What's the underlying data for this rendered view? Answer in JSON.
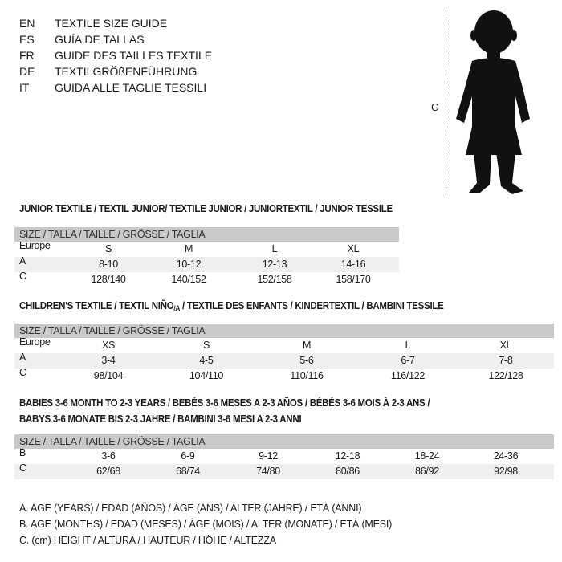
{
  "languages": [
    {
      "code": "EN",
      "text": "TEXTILE SIZE GUIDE"
    },
    {
      "code": "ES",
      "text": "GUÍA DE TALLAS"
    },
    {
      "code": "FR",
      "text": "GUIDE DES TAILLES TEXTILE"
    },
    {
      "code": "DE",
      "text": "TEXTILGRÖßENFÜHRUNG"
    },
    {
      "code": "IT",
      "text": "GUIDA ALLE TAGLIE TESSILI"
    }
  ],
  "figure": {
    "height_label": "C",
    "icon": "child-silhouette"
  },
  "junior": {
    "title": "JUNIOR TEXTILE / TEXTIL JUNIOR/ TEXTILE JUNIOR / JUNIORTEXTIL / JUNIOR TESSILE",
    "header": "SIZE / TALLA / TAILLE / GRÖSSE / TAGLIA",
    "rows": [
      {
        "label": "Europe",
        "cells": [
          "S",
          "M",
          "L",
          "XL"
        ]
      },
      {
        "label": "A",
        "cells": [
          "8-10",
          "10-12",
          "12-13",
          "14-16"
        ]
      },
      {
        "label": "C",
        "cells": [
          "128/140",
          "140/152",
          "152/158",
          "158/170"
        ]
      }
    ]
  },
  "children": {
    "title_a": "CHILDREN'S TEXTILE / TEXTIL NIÑO",
    "title_sub": "/A",
    "title_b": " / TEXTILE DES ENFANTS / KINDERTEXTIL / BAMBINI TESSILE",
    "header": "SIZE / TALLA / TAILLE / GRÖSSE / TAGLIA",
    "rows": [
      {
        "label": "Europe",
        "cells": [
          "XS",
          "S",
          "M",
          "L",
          "XL"
        ]
      },
      {
        "label": "A",
        "cells": [
          "3-4",
          "4-5",
          "5-6",
          "6-7",
          "7-8"
        ]
      },
      {
        "label": "C",
        "cells": [
          "98/104",
          "104/110",
          "110/116",
          "116/122",
          "122/128"
        ]
      }
    ]
  },
  "babies": {
    "title_line1": "BABIES 3-6 MONTH TO 2-3 YEARS / BEBÉS 3-6 MESES A 2-3 AÑOS / BÉBÉS 3-6 MOIS À 2-3 ANS /",
    "title_line2": "BABYS 3-6 MONATE BIS 2-3 JAHRE / BAMBINI 3-6 MESI A 2-3 ANNI",
    "header": "SIZE / TALLA / TAILLE / GRÖSSE / TAGLIA",
    "rows": [
      {
        "label": "B",
        "cells": [
          "3-6",
          "6-9",
          "9-12",
          "12-18",
          "18-24",
          "24-36"
        ]
      },
      {
        "label": "C",
        "cells": [
          "62/68",
          "68/74",
          "74/80",
          "80/86",
          "86/92",
          "92/98"
        ]
      }
    ]
  },
  "legend": [
    "A. AGE (YEARS) / EDAD (AÑOS) / ÂGE (ANS) / ALTER (JAHRE) / ETÀ (ANNI)",
    "B. AGE (MONTHS) / EDAD (MESES) / ÂGE (MOIS) / ALTER (MONATE) / ETÀ (MESI)",
    "C. (cm) HEIGHT / ALTURA / HAUTEUR / HÖHE / ALTEZZA"
  ]
}
